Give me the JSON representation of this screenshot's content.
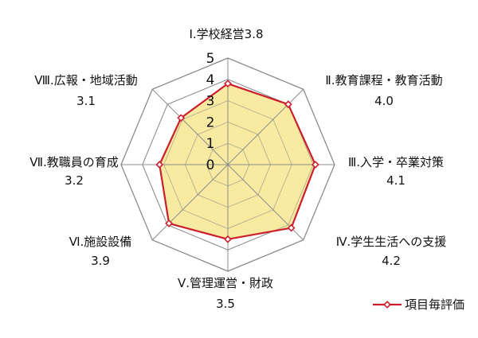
{
  "chart_data": {
    "type": "radar",
    "categories": [
      "Ⅰ.学校経営",
      "Ⅱ.教育課程・教育活動",
      "Ⅲ.入学・卒業対策",
      "Ⅳ.学生生活への支援",
      "Ⅴ.管理運営・財政",
      "Ⅵ.施設設備",
      "Ⅶ.教職員の育成",
      "Ⅷ.広報・地域活動"
    ],
    "value_labels": [
      "3.8",
      "4.0",
      "4.1",
      "4.2",
      "3.5",
      "3.9",
      "3.2",
      "3.1"
    ],
    "series": [
      {
        "name": "項目毎評価",
        "values": [
          3.8,
          4.0,
          4.1,
          4.2,
          3.5,
          3.9,
          3.2,
          3.1
        ]
      }
    ],
    "rlim": [
      0,
      5
    ],
    "ticks": [
      "0",
      "1",
      "2",
      "3",
      "4",
      "5"
    ],
    "grid": true,
    "legend_position": "bottom-right",
    "colors": {
      "line": "#cc1f2d",
      "fill": "#f8eaa0",
      "grid": "#8c8c8c",
      "marker_fill": "#ffffff"
    }
  }
}
